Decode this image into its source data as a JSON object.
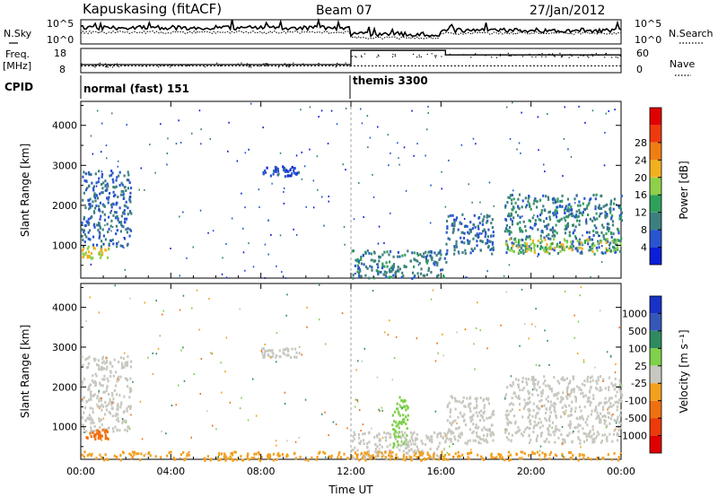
{
  "header": {
    "station": "Kapuskasing (fitACF)",
    "beam": "Beam 07",
    "date": "27/Jan/2012"
  },
  "noise_panel": {
    "left_label": "N.Sky",
    "right_label": "N.Search",
    "left_ticks": [
      "10^5",
      "10^0"
    ],
    "right_ticks": [
      "10^5",
      "10^0"
    ]
  },
  "freq_panel": {
    "left_label": "Freq.",
    "left_unit": "[MHz]",
    "right_label": "Nave",
    "left_ticks": [
      "18",
      "8"
    ],
    "right_ticks": [
      "60",
      "0"
    ],
    "freq_mhz": 10.8,
    "nave_before": 20,
    "nave_after": 44
  },
  "cpid_panel": {
    "label": "CPID",
    "modes": [
      {
        "name": "normal (fast) 151",
        "start_ut": 0
      },
      {
        "name": "themis 3300",
        "start_ut": 12
      }
    ]
  },
  "colors": {
    "power": [
      "#0a1fd6",
      "#2a55d0",
      "#3d7f7e",
      "#2fa05a",
      "#8fd04a",
      "#f2b01e",
      "#f07d12",
      "#ee3a0e",
      "#e00000"
    ],
    "velocity": [
      "#1832c8",
      "#3557b8",
      "#2f8a60",
      "#7fd04a",
      "#c8c8c0",
      "#f2a01e",
      "#f07010",
      "#ec3a0a",
      "#e00000"
    ]
  },
  "chart_data": [
    {
      "type": "heatmap",
      "quantity": "power",
      "xlabel": "Time UT",
      "ylabel": "Slant Range [km]",
      "xlim": [
        0,
        24
      ],
      "ylim": [
        180,
        4600
      ],
      "xticks": [
        "00:00",
        "04:00",
        "08:00",
        "12:00",
        "16:00",
        "20:00",
        "00:00"
      ],
      "yticks": [
        1000,
        2000,
        3000,
        4000
      ],
      "colorbar": {
        "label": "Power [dB]",
        "ticks": [
          "4",
          "8",
          "12",
          "16",
          "20",
          "24",
          "28"
        ],
        "range": [
          0,
          32
        ]
      },
      "features": [
        {
          "t": [
            0.0,
            1.2
          ],
          "r": [
            700,
            1000
          ],
          "value": 20
        },
        {
          "t": [
            0.0,
            2.2
          ],
          "r": [
            1000,
            2900
          ],
          "value": 8
        },
        {
          "t": [
            8.0,
            9.7
          ],
          "r": [
            2750,
            3000
          ],
          "value": 6
        },
        {
          "t": [
            12.0,
            16.2
          ],
          "r": [
            200,
            900
          ],
          "value": 10
        },
        {
          "t": [
            16.2,
            18.3
          ],
          "r": [
            800,
            1800
          ],
          "value": 8
        },
        {
          "t": [
            18.8,
            24.0
          ],
          "r": [
            800,
            2300
          ],
          "value": 10
        },
        {
          "t": [
            18.8,
            24.0
          ],
          "r": [
            850,
            1200
          ],
          "value": 18
        }
      ]
    },
    {
      "type": "heatmap",
      "quantity": "velocity",
      "xlabel": "Time UT",
      "ylabel": "Slant Range [km]",
      "xlim": [
        0,
        24
      ],
      "ylim": [
        180,
        4600
      ],
      "xticks": [
        "00:00",
        "04:00",
        "08:00",
        "12:00",
        "16:00",
        "20:00",
        "00:00"
      ],
      "yticks": [
        1000,
        2000,
        3000,
        4000
      ],
      "colorbar": {
        "label": "Velocity [m s⁻¹]",
        "ticks": [
          "1000",
          "500",
          "100",
          "25",
          "-25",
          "-100",
          "-500",
          "-1000"
        ]
      },
      "features": [
        {
          "t": [
            0.0,
            2.2
          ],
          "r": [
            900,
            2800
          ],
          "value": 0
        },
        {
          "t": [
            0.2,
            1.2
          ],
          "r": [
            700,
            950
          ],
          "value": -300
        },
        {
          "t": [
            8.0,
            9.7
          ],
          "r": [
            2750,
            3000
          ],
          "value": 0
        },
        {
          "t": [
            13.8,
            14.5
          ],
          "r": [
            500,
            1800
          ],
          "value": 60
        },
        {
          "t": [
            12.0,
            16.2
          ],
          "r": [
            200,
            900
          ],
          "value": 0
        },
        {
          "t": [
            16.2,
            18.3
          ],
          "r": [
            600,
            1800
          ],
          "value": 0
        },
        {
          "t": [
            18.8,
            24.0
          ],
          "r": [
            600,
            2300
          ],
          "value": 0
        },
        {
          "t": [
            0.0,
            24.0
          ],
          "r": [
            180,
            400
          ],
          "value": -60
        }
      ]
    }
  ]
}
